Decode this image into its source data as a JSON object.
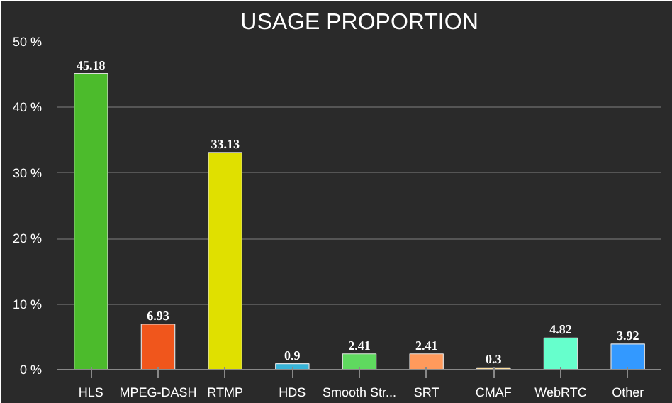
{
  "chart_data": {
    "type": "bar",
    "title": "USAGE PROPORTION",
    "categories": [
      "HLS",
      "MPEG-DASH",
      "RTMP",
      "HDS",
      "Smooth Str...",
      "SRT",
      "CMAF",
      "WebRTC",
      "Other"
    ],
    "values": [
      45.18,
      6.93,
      33.13,
      0.9,
      2.41,
      2.41,
      0.3,
      4.82,
      3.92
    ],
    "colors": [
      "#4cbb2c",
      "#f0561c",
      "#e0e000",
      "#38b4d8",
      "#5fd95f",
      "#ff9a5c",
      "#ffe0a0",
      "#66ffcc",
      "#3399ff"
    ],
    "ylim": [
      0,
      50
    ],
    "yticks": [
      {
        "value": 0,
        "label": "0 %"
      },
      {
        "value": 10,
        "label": "10 %"
      },
      {
        "value": 20,
        "label": "20 %"
      },
      {
        "value": 30,
        "label": "30 %"
      },
      {
        "value": 40,
        "label": "40 %"
      },
      {
        "value": 50,
        "label": "50 %"
      }
    ],
    "grid": "y",
    "data_labels": true
  }
}
